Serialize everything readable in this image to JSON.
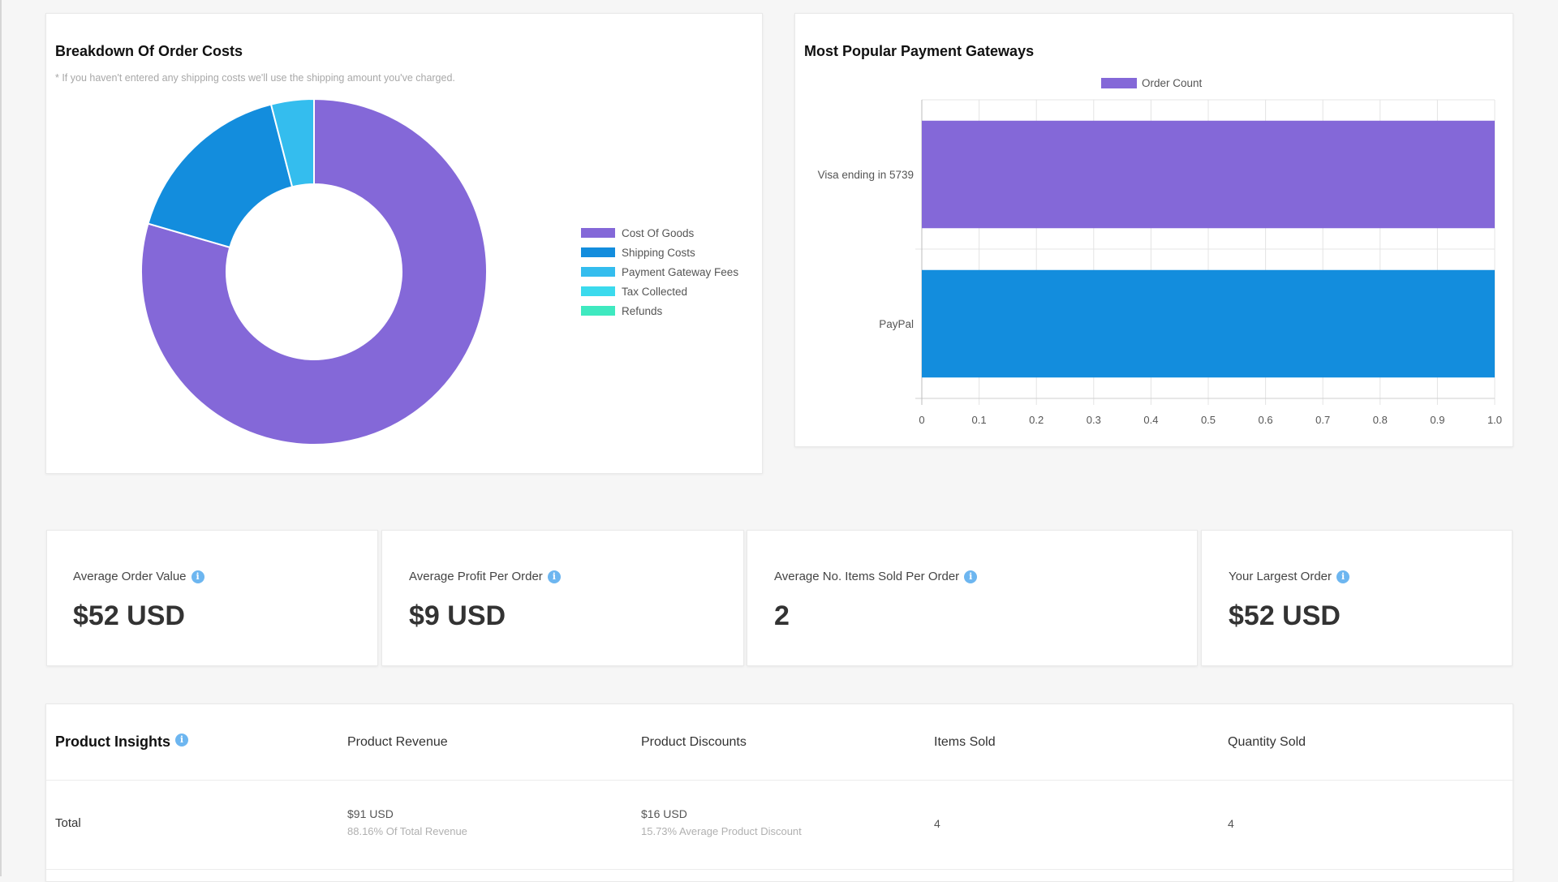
{
  "order_costs": {
    "title": "Breakdown Of Order Costs",
    "note": "* If you haven't entered any shipping costs we'll use the shipping amount you've charged.",
    "legend": [
      {
        "label": "Cost Of Goods",
        "color": "#8468d8"
      },
      {
        "label": "Shipping Costs",
        "color": "#138ddd"
      },
      {
        "label": "Payment Gateway Fees",
        "color": "#34bdee"
      },
      {
        "label": "Tax Collected",
        "color": "#3bdaed"
      },
      {
        "label": "Refunds",
        "color": "#3fe9c0"
      }
    ]
  },
  "payment_gateways": {
    "title": "Most Popular Payment Gateways",
    "legend_label": "Order Count",
    "legend_color": "#8468d8"
  },
  "stats": [
    {
      "label": "Average Order Value",
      "value": "$52 USD"
    },
    {
      "label": "Average Profit Per Order",
      "value": "$9 USD"
    },
    {
      "label": "Average No. Items Sold Per Order",
      "value": "2"
    },
    {
      "label": "Your Largest Order",
      "value": "$52 USD"
    }
  ],
  "product_insights": {
    "title": "Product Insights",
    "columns": [
      "Product Revenue",
      "Product Discounts",
      "Items Sold",
      "Quantity Sold"
    ],
    "rows": [
      {
        "label": "Total",
        "revenue": "$91 USD",
        "revenue_sub": "88.16% Of Total Revenue",
        "discounts": "$16 USD",
        "discounts_sub": "15.73% Average Product Discount",
        "items_sold": "4",
        "quantity_sold": "4"
      }
    ]
  },
  "chart_data": [
    {
      "type": "pie",
      "title": "Breakdown Of Order Costs",
      "categories": [
        "Cost Of Goods",
        "Shipping Costs",
        "Payment Gateway Fees",
        "Tax Collected",
        "Refunds"
      ],
      "values": [
        79.5,
        16.5,
        4.0,
        0,
        0
      ],
      "colors": [
        "#8468d8",
        "#138ddd",
        "#34bdee",
        "#3bdaed",
        "#3fe9c0"
      ],
      "donut": true,
      "legend": "right"
    },
    {
      "type": "bar",
      "orientation": "horizontal",
      "title": "Most Popular Payment Gateways",
      "categories": [
        "Visa ending in 5739",
        "PayPal"
      ],
      "series": [
        {
          "name": "Order Count",
          "values": [
            1,
            1
          ]
        }
      ],
      "bar_colors": [
        "#8468d8",
        "#138ddd"
      ],
      "xlim": [
        0,
        1.0
      ],
      "xticks": [
        "0",
        "0.1",
        "0.2",
        "0.3",
        "0.4",
        "0.5",
        "0.6",
        "0.7",
        "0.8",
        "0.9",
        "1.0"
      ],
      "grid": true,
      "legend": "top"
    }
  ]
}
